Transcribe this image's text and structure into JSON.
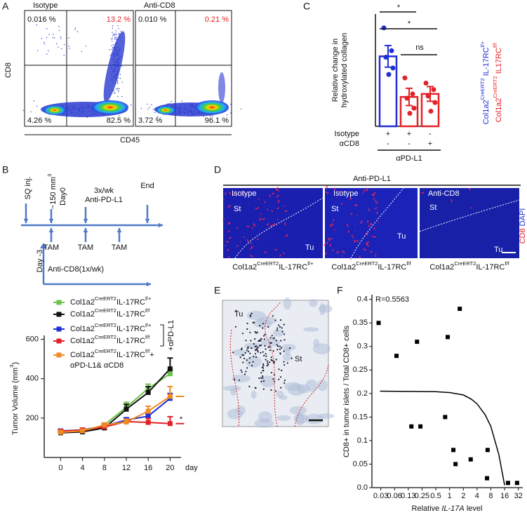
{
  "panel_labels": [
    "A",
    "B",
    "C",
    "D",
    "E",
    "F"
  ],
  "flow": {
    "ylabel": "CD8",
    "xlabel": "CD45",
    "plots": [
      {
        "title": "Isotype",
        "quadrants": {
          "upper_left": "0.016 %",
          "upper_right": "13.2 %",
          "lower_left": "4.26 %",
          "lower_right": "82.5 %"
        }
      },
      {
        "title": "Anti-CD8",
        "quadrants": {
          "upper_left": "0.010 %",
          "upper_right": "0.21 %",
          "lower_left": "3.72 %",
          "lower_right": "96.1 %"
        }
      }
    ]
  },
  "timeline": {
    "injection": "SQ inj.",
    "volume": [
      "~150 mm",
      "3"
    ],
    "day0": "Day0",
    "dosing": "3x/wk",
    "drug": "Anti-PD-L1",
    "end": "End",
    "tam": "TAM",
    "day_minus3": "Day -3",
    "anti_cd8": "Anti-CD8(1x/wk)"
  },
  "chart_data": [
    {
      "type": "bar",
      "ylabel": [
        "Relative change in",
        "hydroxylated collagen"
      ],
      "categories": [
        null,
        null,
        null
      ],
      "values": [
        1.62,
        0.68,
        0.75
      ],
      "errors": [
        0.25,
        0.2,
        0.17
      ],
      "colors": [
        "#1f2fd6",
        "#e32227",
        "#e32227"
      ],
      "points": [
        [
          2.28,
          1.75,
          1.6,
          1.35,
          1.2
        ],
        [
          1.12,
          0.75,
          0.65,
          0.42,
          0.3
        ],
        [
          1.0,
          0.85,
          0.7,
          0.55,
          0.35
        ]
      ],
      "ylim": [
        0,
        2.6
      ],
      "significance": [
        {
          "label": "*",
          "between": [
            0,
            1
          ]
        },
        {
          "label": "ns",
          "between": [
            1,
            2
          ]
        },
        {
          "label": "*",
          "between": [
            0,
            2
          ]
        }
      ],
      "treatments": [
        {
          "label": "Isotype",
          "marks": [
            "+",
            "+",
            "-"
          ]
        },
        {
          "label": "αCD8",
          "marks": [
            "-",
            "-",
            "+"
          ]
        }
      ],
      "group_label": "αPD-L1",
      "legend": [
        {
          "name": [
            "Col1a2",
            "CreERT2",
            " IL-17RC",
            "f/+"
          ],
          "color": "#1f2fd6"
        },
        {
          "name": [
            "Col1a2",
            "CreERT2",
            " IL17RC",
            "f/f"
          ],
          "color": "#e32227"
        }
      ]
    },
    {
      "type": "line",
      "ylabel": [
        "Tumor Volume (mm",
        "3",
        ")"
      ],
      "xlabel": "day",
      "x": [
        0,
        4,
        8,
        12,
        16,
        20
      ],
      "xlim": [
        -3,
        22
      ],
      "xticks": [
        0,
        4,
        8,
        12,
        16,
        20
      ],
      "ylim": [
        0,
        620
      ],
      "yticks": [
        200,
        400,
        600
      ],
      "series": [
        {
          "name": [
            "Col1a2",
            "CreERT2",
            "IL-17RC",
            "f/+"
          ],
          "color": "#6cc24a",
          "values": [
            128,
            130,
            165,
            255,
            350,
            425
          ],
          "errors": [
            8,
            8,
            10,
            25,
            22,
            22
          ]
        },
        {
          "name": [
            "Col1a2",
            "CreERT2",
            "IL-17RC",
            "f/f"
          ],
          "color": "#111111",
          "values": [
            125,
            130,
            150,
            245,
            330,
            450
          ],
          "errors": [
            6,
            8,
            8,
            25,
            30,
            55
          ]
        },
        {
          "name": [
            "Col1a2",
            "CreERT2",
            "IL-17RC",
            "f/+"
          ],
          "color": "#1f2fd6",
          "values": [
            135,
            140,
            160,
            190,
            210,
            300
          ],
          "errors": [
            8,
            8,
            8,
            12,
            10,
            25
          ]
        },
        {
          "name": [
            "Col1a2",
            "CreERT2",
            "IL-17RC",
            "f/f"
          ],
          "color": "#e32227",
          "values": [
            133,
            140,
            155,
            182,
            178,
            172
          ],
          "errors": [
            8,
            8,
            8,
            12,
            20,
            35
          ],
          "end_dash": true
        },
        {
          "name": [
            "Col1a2",
            "CreERT2",
            "IL-17RC",
            "f/f",
            "+"
          ],
          "name_continued": "αPD-L1& αCD8",
          "color": "#f08a24",
          "values": [
            128,
            135,
            165,
            180,
            235,
            310
          ],
          "errors": [
            6,
            8,
            10,
            15,
            25,
            50
          ],
          "end_dash": true
        }
      ],
      "legend_group_label": "+αPD-L1",
      "significance": "*"
    },
    {
      "type": "scatter",
      "xscale": "log2",
      "x": [
        0.028,
        0.069,
        0.146,
        0.194,
        0.23,
        0.8,
        0.91,
        1.21,
        1.35,
        1.67,
        2.9,
        6.8,
        6.6,
        19,
        30
      ],
      "values": [
        0.35,
        0.28,
        0.13,
        0.31,
        0.13,
        0.15,
        0.32,
        0.08,
        0.05,
        0.38,
        0.06,
        0.08,
        0.02,
        0.01,
        0.01
      ],
      "xlim": [
        0.02,
        40
      ],
      "ylim": [
        0,
        0.41
      ],
      "xticks": [
        {
          "value": 0.03125,
          "label": "0.03"
        },
        {
          "value": 0.0625,
          "label": "0.06"
        },
        {
          "value": 0.125,
          "label": "0.13"
        },
        0.25,
        0.5,
        1,
        2,
        4,
        8,
        16,
        32
      ],
      "yticks": [
        {
          "value": 0,
          "label": "0.0"
        },
        0.05,
        0.1,
        0.15,
        0.2,
        0.25,
        0.3,
        0.35,
        0.4
      ],
      "annotation": "R=0.5563",
      "xlabel": [
        "Relative ",
        "IL-17A",
        " level"
      ],
      "ylabel": "CD8+ in tumor islets / Total CD8+ cells",
      "color": "#000000",
      "fit": {
        "x": [
          0.03,
          0.5,
          1,
          2,
          3,
          4,
          6,
          8,
          12,
          16
        ],
        "y": [
          0.205,
          0.204,
          0.202,
          0.197,
          0.188,
          0.178,
          0.155,
          0.13,
          0.07,
          0.005
        ]
      }
    }
  ],
  "histology": {
    "header": "Anti-PD-L1",
    "stroma": "St",
    "tumor": "Tu",
    "stain": [
      "CD8",
      "DAPI"
    ],
    "panels": [
      {
        "title": "Isotype",
        "caption": [
          "Col1a2",
          "CreERT2",
          "IL-17RC",
          "f/+"
        ]
      },
      {
        "title": "Isotype",
        "caption": [
          "Col1a2",
          "CreERT2",
          "IL-17RC",
          "f/f"
        ]
      },
      {
        "title": "Anti-CD8",
        "caption": [
          "Col1a2",
          "CreERT2",
          "IL-17RC",
          "f/f"
        ]
      }
    ]
  },
  "ihc": {
    "tumor": "Tu",
    "stroma": "St"
  }
}
